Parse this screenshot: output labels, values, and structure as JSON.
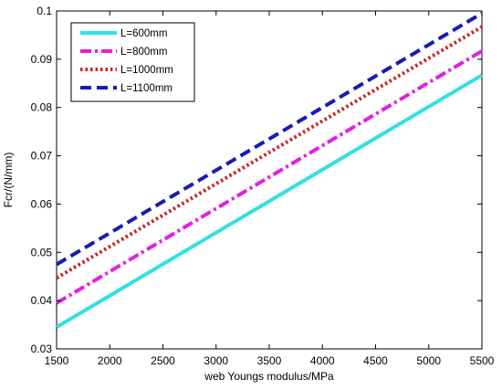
{
  "chart_data": {
    "type": "line",
    "title": "",
    "xlabel": "web  Youngs modulus/MPa",
    "ylabel": "Fcr/(N/mm)",
    "xlim": [
      1500,
      5500
    ],
    "ylim": [
      0.03,
      0.1
    ],
    "xticks": [
      1500,
      2000,
      2500,
      3000,
      3500,
      4000,
      4500,
      5000,
      5500
    ],
    "yticks": [
      0.03,
      0.04,
      0.05,
      0.06,
      0.07,
      0.08,
      0.09,
      0.1
    ],
    "ytick_labels": [
      "0.03",
      "0.04",
      "0.05",
      "0.06",
      "0.07",
      "0.08",
      "0.09",
      "0.1"
    ],
    "grid": false,
    "legend_position": "top-left",
    "series": [
      {
        "name": "L=600mm",
        "color": "#33e0e0",
        "style": "solid",
        "x": [
          1500,
          5500
        ],
        "y": [
          0.0345,
          0.0867
        ]
      },
      {
        "name": "L=800mm",
        "color": "#e020e0",
        "style": "dashdot",
        "x": [
          1500,
          5500
        ],
        "y": [
          0.0395,
          0.0917
        ]
      },
      {
        "name": "L=1000mm",
        "color": "#cc2020",
        "style": "dotted",
        "x": [
          1500,
          5500
        ],
        "y": [
          0.0447,
          0.0967
        ]
      },
      {
        "name": "L=1100mm",
        "color": "#1a1ab4",
        "style": "dashed",
        "x": [
          1500,
          5500
        ],
        "y": [
          0.0475,
          0.0995
        ]
      }
    ]
  }
}
